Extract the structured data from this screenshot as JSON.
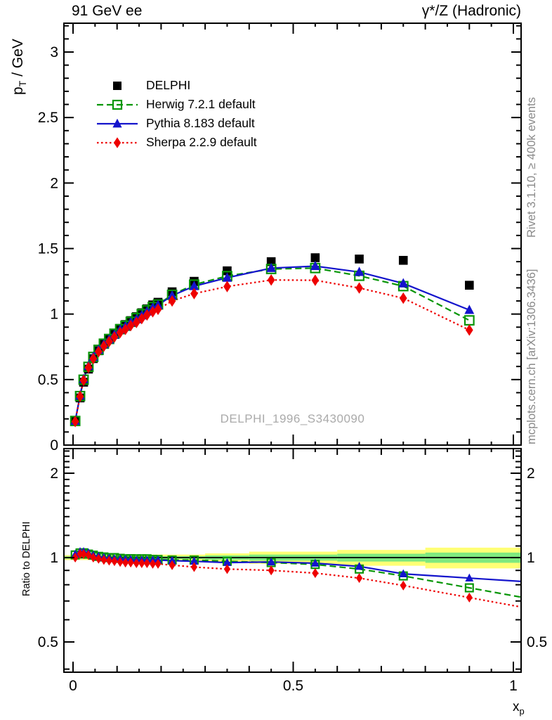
{
  "header": {
    "left": "91 GeV ee",
    "right": "γ*/Z (Hadronic)"
  },
  "side_notes": {
    "rivet": "Rivet 3.1.10, ≥ 400k events",
    "mcplots": "mcplots.cern.ch [arXiv:1306.3436]"
  },
  "watermark": "DELPHI_1996_S3430090",
  "labels": {
    "y_main": {
      "base": "p",
      "sub": "T",
      "rest": " / GeV"
    },
    "y_ratio": "Ratio to DELPHI",
    "x": {
      "base": "x",
      "sub": "p"
    }
  },
  "legend": [
    {
      "label": "DELPHI",
      "marker": "filled-square",
      "color": "#000000",
      "line": "none"
    },
    {
      "label": "Herwig 7.2.1 default",
      "marker": "open-square",
      "color": "#089608",
      "line": "dashed"
    },
    {
      "label": "Pythia 8.183 default",
      "marker": "filled-triangle",
      "color": "#1414CC",
      "line": "solid"
    },
    {
      "label": "Sherpa 2.2.9 default",
      "marker": "filled-diamond",
      "color": "#EE0000",
      "line": "dotted"
    }
  ],
  "chart_data": [
    {
      "type": "scatter",
      "title": "91 GeV ee — γ*/Z (Hadronic)",
      "xlabel": "x_p",
      "ylabel": "p_T / GeV",
      "xlim": [
        -0.021,
        1.018
      ],
      "ylim": [
        0,
        3.22
      ],
      "grid": false,
      "xticks": {
        "values": [
          0,
          0.5,
          1
        ],
        "labels": [
          "0",
          "0.5",
          "1"
        ]
      },
      "yticks": {
        "values": [
          0,
          0.5,
          1,
          1.5,
          2,
          2.5,
          3
        ],
        "labels": [
          "0",
          "0.5",
          "1",
          "1.5",
          "2",
          "2.5",
          "3"
        ]
      },
      "x": [
        0.005,
        0.016,
        0.024,
        0.035,
        0.046,
        0.058,
        0.07,
        0.082,
        0.094,
        0.107,
        0.119,
        0.131,
        0.144,
        0.156,
        0.168,
        0.181,
        0.193,
        0.225,
        0.275,
        0.35,
        0.45,
        0.55,
        0.65,
        0.75,
        0.9
      ],
      "series": [
        {
          "name": "DELPHI",
          "marker": "filled-square",
          "color": "#000000",
          "line": "none",
          "values": [
            0.18,
            0.36,
            0.48,
            0.58,
            0.66,
            0.72,
            0.77,
            0.81,
            0.85,
            0.89,
            0.92,
            0.95,
            0.98,
            1.01,
            1.04,
            1.07,
            1.09,
            1.17,
            1.25,
            1.33,
            1.4,
            1.43,
            1.42,
            1.41,
            1.22
          ]
        },
        {
          "name": "Herwig 7.2.1 default",
          "marker": "open-square",
          "color": "#089608",
          "line": "dashed",
          "values": [
            0.184,
            0.374,
            0.499,
            0.597,
            0.673,
            0.727,
            0.774,
            0.81,
            0.85,
            0.885,
            0.911,
            0.941,
            0.97,
            1.0,
            1.03,
            1.054,
            1.073,
            1.147,
            1.225,
            1.29,
            1.344,
            1.351,
            1.292,
            1.213,
            0.952
          ]
        },
        {
          "name": "Pythia 8.183 default",
          "marker": "filled-triangle",
          "color": "#1414CC",
          "line": "solid",
          "values": [
            0.185,
            0.378,
            0.504,
            0.603,
            0.673,
            0.727,
            0.77,
            0.806,
            0.842,
            0.881,
            0.906,
            0.936,
            0.96,
            0.99,
            1.019,
            1.049,
            1.068,
            1.141,
            1.213,
            1.277,
            1.351,
            1.366,
            1.321,
            1.234,
            1.031
          ]
        },
        {
          "name": "Sherpa 2.2.9 default",
          "marker": "filled-diamond",
          "color": "#EE0000",
          "line": "dotted",
          "values": [
            0.18,
            0.371,
            0.494,
            0.592,
            0.66,
            0.713,
            0.755,
            0.79,
            0.825,
            0.859,
            0.883,
            0.912,
            0.936,
            0.965,
            0.993,
            1.017,
            1.036,
            1.1,
            1.156,
            1.21,
            1.26,
            1.258,
            1.199,
            1.121,
            0.878
          ]
        }
      ]
    },
    {
      "type": "ratio-line",
      "ylabel": "Ratio to DELPHI",
      "yscale": "log",
      "ylim": [
        0.39,
        2.45
      ],
      "yticks": {
        "values": [
          0.5,
          1,
          2
        ],
        "labels": [
          "0.5",
          "1",
          "2"
        ]
      },
      "reference_line": 1,
      "band_colors": {
        "outer": "#FFFF75",
        "inner": "#7FE97F"
      },
      "bands": [
        {
          "x0": -0.021,
          "x1": 0.1,
          "ylo": 0.98,
          "yhi": 1.02,
          "glo": 0.99,
          "ghi": 1.01
        },
        {
          "x0": 0.1,
          "x1": 0.3,
          "ylo": 0.975,
          "yhi": 1.025,
          "glo": 0.988,
          "ghi": 1.012
        },
        {
          "x0": 0.3,
          "x1": 0.4,
          "ylo": 0.965,
          "yhi": 1.035,
          "glo": 0.982,
          "ghi": 1.018
        },
        {
          "x0": 0.4,
          "x1": 0.6,
          "ylo": 0.95,
          "yhi": 1.05,
          "glo": 0.975,
          "ghi": 1.025
        },
        {
          "x0": 0.6,
          "x1": 0.8,
          "ylo": 0.935,
          "yhi": 1.065,
          "glo": 0.968,
          "ghi": 1.032
        },
        {
          "x0": 0.8,
          "x1": 1.018,
          "ylo": 0.915,
          "yhi": 1.085,
          "glo": 0.958,
          "ghi": 1.042
        }
      ],
      "x": [
        0.005,
        0.016,
        0.024,
        0.035,
        0.046,
        0.058,
        0.07,
        0.082,
        0.094,
        0.107,
        0.119,
        0.131,
        0.144,
        0.156,
        0.168,
        0.181,
        0.193,
        0.225,
        0.275,
        0.35,
        0.45,
        0.55,
        0.65,
        0.75,
        0.9
      ],
      "series": [
        {
          "name": "Herwig 7.2.1 default",
          "marker": "open-square",
          "color": "#089608",
          "line": "dashed",
          "values": [
            1.022,
            1.039,
            1.04,
            1.029,
            1.02,
            1.01,
            1.005,
            1.0,
            1.0,
            0.994,
            0.99,
            0.991,
            0.99,
            0.99,
            0.99,
            0.985,
            0.984,
            0.98,
            0.98,
            0.97,
            0.96,
            0.945,
            0.91,
            0.86,
            0.78
          ]
        },
        {
          "name": "Pythia 8.183 default",
          "marker": "filled-triangle",
          "color": "#1414CC",
          "line": "solid",
          "values": [
            1.028,
            1.05,
            1.05,
            1.04,
            1.02,
            1.01,
            1.0,
            0.995,
            0.991,
            0.99,
            0.985,
            0.985,
            0.98,
            0.98,
            0.98,
            0.98,
            0.98,
            0.975,
            0.97,
            0.96,
            0.965,
            0.955,
            0.93,
            0.875,
            0.845
          ]
        },
        {
          "name": "Sherpa 2.2.9 default",
          "marker": "filled-diamond",
          "color": "#EE0000",
          "line": "dotted",
          "values": [
            1.0,
            1.031,
            1.029,
            1.021,
            1.0,
            0.99,
            0.981,
            0.975,
            0.971,
            0.965,
            0.96,
            0.96,
            0.955,
            0.955,
            0.955,
            0.95,
            0.95,
            0.94,
            0.925,
            0.91,
            0.9,
            0.88,
            0.845,
            0.795,
            0.72
          ]
        }
      ]
    }
  ]
}
